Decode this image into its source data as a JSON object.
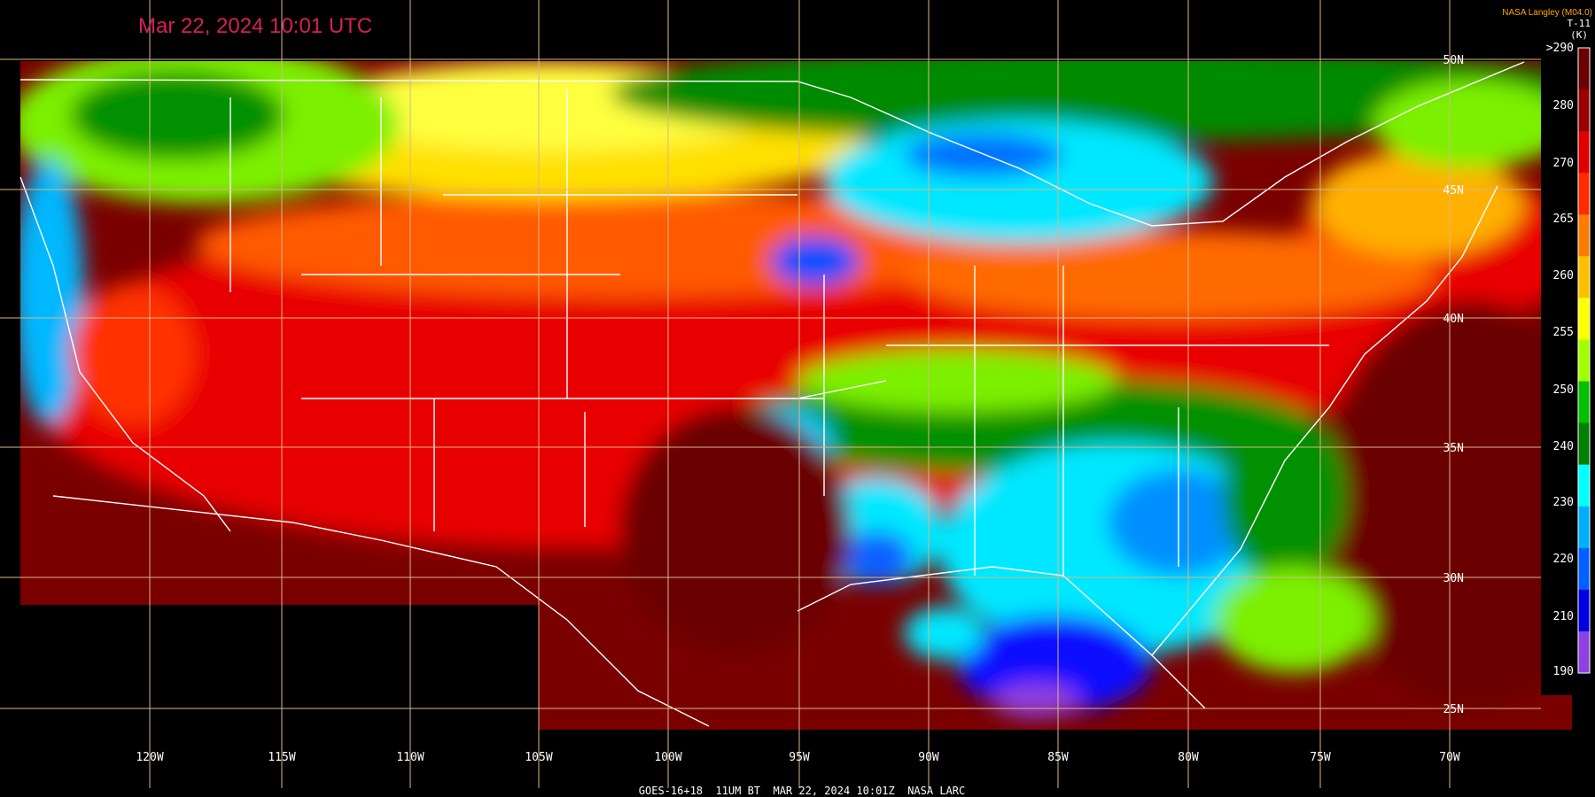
{
  "header": {
    "title": "Mar 22, 2024 10:01 UTC",
    "credit": "NASA Langley (M04.0)",
    "product": "T-11",
    "unit": "(K)"
  },
  "colorbar": {
    "labels": [
      ">290",
      "280",
      "270",
      "265",
      "260",
      "255",
      "250",
      "240",
      "230",
      "220",
      "210",
      "190"
    ]
  },
  "longitude_labels": [
    "120W",
    "115W",
    "110W",
    "105W",
    "100W",
    "95W",
    "90W",
    "85W",
    "80W",
    "75W",
    "70W"
  ],
  "latitude_labels": [
    "50N",
    "45N",
    "40N",
    "35N",
    "30N",
    "25N"
  ],
  "footer": "GOES-16+18  11UM BT  MAR 22, 2024 10:01Z  NASA LARC"
}
